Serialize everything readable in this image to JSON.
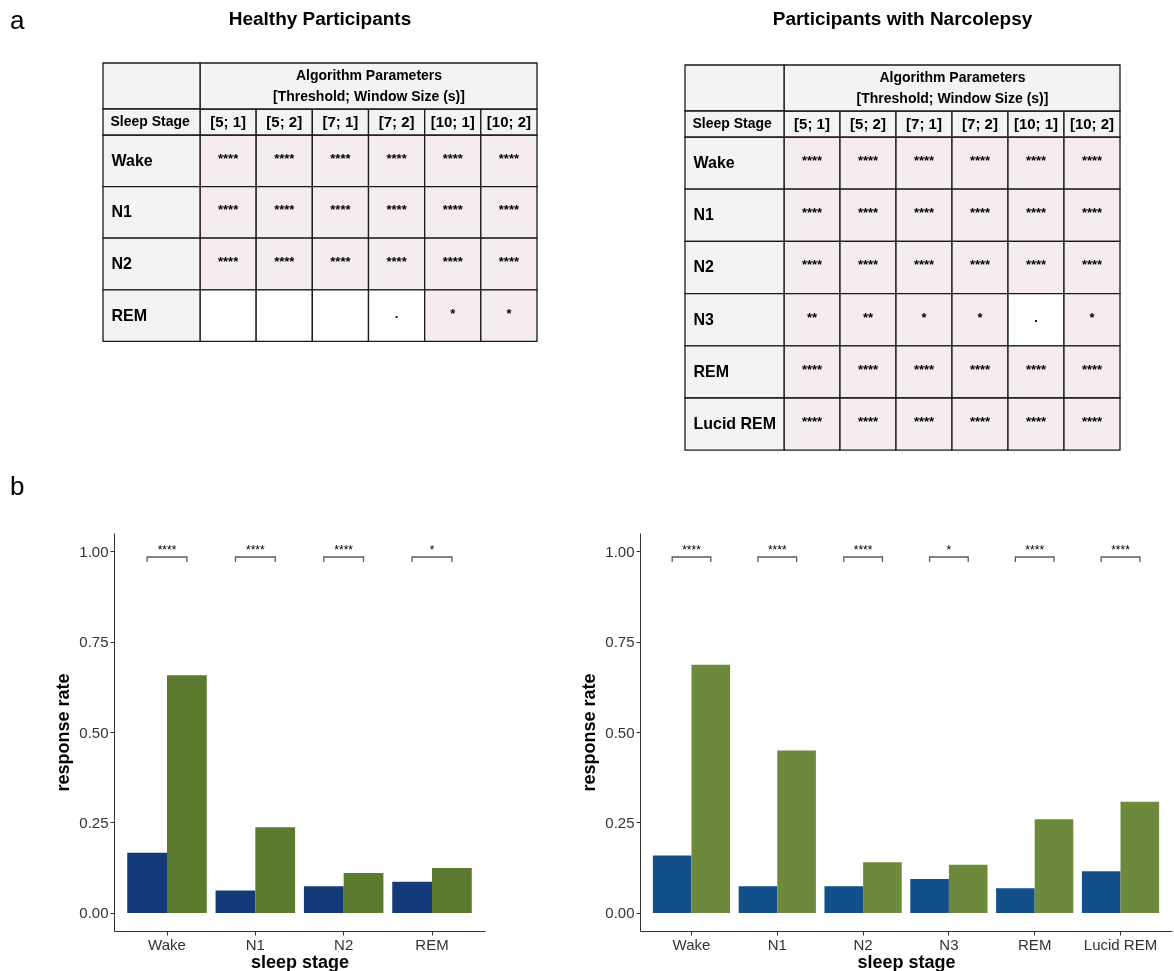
{
  "chart_data": [
    {
      "type": "heatmap",
      "title": "Healthy Participants",
      "xlabel": "Algorithm Parameters\n[Threshold; Window Size (s)]",
      "ylabel": "Sleep Stage",
      "categories": [
        "[5; 1]",
        "[5; 2]",
        "[7; 1]",
        "[7; 2]",
        "[10; 1]",
        "[10; 2]"
      ],
      "y_categories": [
        "Wake",
        "N1",
        "N2",
        "REM"
      ],
      "cells": [
        [
          null,
          null,
          null,
          null,
          null,
          null
        ],
        [
          null,
          null,
          null,
          null,
          null,
          null
        ],
        [
          null,
          null,
          null,
          null,
          null,
          null
        ],
        [
          null,
          null,
          null,
          null,
          null,
          null
        ]
      ],
      "cell_labels": [
        [
          "****",
          "****",
          "****",
          "****",
          "****",
          "****"
        ],
        [
          "****",
          "****",
          "****",
          "****",
          "****",
          "****"
        ],
        [
          "****",
          "****",
          "****",
          "****",
          "****",
          "****"
        ],
        [
          null,
          null,
          null,
          ".",
          "*",
          "*"
        ]
      ],
      "colors": [
        [
          "#f5ecef",
          "#f5ecef",
          "#f5ecef",
          "#f5ecef",
          "#f5ecef",
          "#f5ecef"
        ],
        [
          "#f5ecef",
          "#f5ecef",
          "#f5ecef",
          "#f5ecef",
          "#f5ecef",
          "#f5ecef"
        ],
        [
          "#f5ecef",
          "#f5ecef",
          "#f5ecef",
          "#f5ecef",
          "#f5ecef",
          "#f5ecef"
        ],
        [
          "#ffffff",
          "#ffffff",
          "#ffffff",
          "#ffffff",
          "#f5ecef",
          "#f5ecef"
        ]
      ],
      "annotations": [
        "a"
      ]
    },
    {
      "type": "heatmap",
      "title": "Participants with Narcolepsy",
      "xlabel": "Algorithm Parameters\n[Threshold; Window Size (s)]",
      "ylabel": "Sleep Stage",
      "categories": [
        "[5; 1]",
        "[5; 2]",
        "[7; 1]",
        "[7; 2]",
        "[10; 1]",
        "[10; 2]"
      ],
      "y_categories": [
        "Wake",
        "N1",
        "N2",
        "N3",
        "REM",
        "Lucid REM"
      ],
      "cells": [
        [
          null,
          null,
          null,
          null,
          null,
          null
        ],
        [
          null,
          null,
          null,
          null,
          null,
          null
        ],
        [
          null,
          null,
          null,
          null,
          null,
          null
        ],
        [
          null,
          null,
          null,
          null,
          null,
          null
        ],
        [
          null,
          null,
          null,
          null,
          null,
          null
        ],
        [
          null,
          null,
          null,
          null,
          null,
          null
        ]
      ],
      "cell_labels": [
        [
          "****",
          "****",
          "****",
          "****",
          "****",
          "****"
        ],
        [
          "****",
          "****",
          "****",
          "****",
          "****",
          "****"
        ],
        [
          "****",
          "****",
          "****",
          "****",
          "****",
          "****"
        ],
        [
          "**",
          "**",
          "*",
          "*",
          ".",
          "*"
        ],
        [
          "****",
          "****",
          "****",
          "****",
          "****",
          "****"
        ],
        [
          "****",
          "****",
          "****",
          "****",
          "****",
          "****"
        ]
      ],
      "colors": [
        [
          "#f5ecef",
          "#f5ecef",
          "#f5ecef",
          "#f5ecef",
          "#f5ecef",
          "#f5ecef"
        ],
        [
          "#f5ecef",
          "#f5ecef",
          "#f5ecef",
          "#f5ecef",
          "#f5ecef",
          "#f5ecef"
        ],
        [
          "#f5ecef",
          "#f5ecef",
          "#f5ecef",
          "#f5ecef",
          "#f5ecef",
          "#f5ecef"
        ],
        [
          "#f5ecef",
          "#f5ecef",
          "#f5ecef",
          "#f5ecef",
          "#ffffff",
          "#f5ecef"
        ],
        [
          "#f5ecef",
          "#f5ecef",
          "#f5ecef",
          "#f5ecef",
          "#f5ecef",
          "#f5ecef"
        ],
        [
          "#f5ecef",
          "#f5ecef",
          "#f5ecef",
          "#f5ecef",
          "#f5ecef",
          "#f5ecef"
        ]
      ]
    },
    {
      "type": "bar",
      "xlabel": "sleep stage",
      "ylabel": "response rate",
      "categories": [
        "Wake",
        "N1",
        "N2",
        "REM"
      ],
      "series": [
        {
          "color": "#143b78",
          "values": [
            0.166,
            0.062,
            0.074,
            0.086
          ]
        },
        {
          "color": "#5c7a2e",
          "values": [
            0.657,
            0.237,
            0.11,
            0.124
          ]
        }
      ],
      "ylim": [
        -0.05,
        1.05
      ],
      "yticks": [
        {
          "value": 0,
          "label": "0.00"
        },
        {
          "value": 0.25,
          "label": "0.25"
        },
        {
          "value": 0.5,
          "label": "0.50"
        },
        {
          "value": 0.75,
          "label": "0.75"
        },
        {
          "value": 1,
          "label": "1.00"
        }
      ],
      "annotations": [
        "b",
        "****",
        "****",
        "****",
        "*"
      ]
    },
    {
      "type": "bar",
      "xlabel": "sleep stage",
      "ylabel": "response rate",
      "categories": [
        "Wake",
        "N1",
        "N2",
        "N3",
        "REM",
        "Lucid REM"
      ],
      "series": [
        {
          "color": "#134f8b",
          "values": [
            0.159,
            0.074,
            0.074,
            0.094,
            0.068,
            0.115
          ]
        },
        {
          "color": "#6d8a3c",
          "values": [
            0.686,
            0.449,
            0.14,
            0.133,
            0.259,
            0.307
          ]
        }
      ],
      "ylim": [
        -0.05,
        1.05
      ],
      "yticks": [
        {
          "value": 0,
          "label": "0.00"
        },
        {
          "value": 0.25,
          "label": "0.25"
        },
        {
          "value": 0.5,
          "label": "0.50"
        },
        {
          "value": 0.75,
          "label": "0.75"
        },
        {
          "value": 1,
          "label": "1.00"
        }
      ],
      "annotations": [
        "****",
        "****",
        "****",
        "*",
        "****",
        "****"
      ]
    }
  ]
}
